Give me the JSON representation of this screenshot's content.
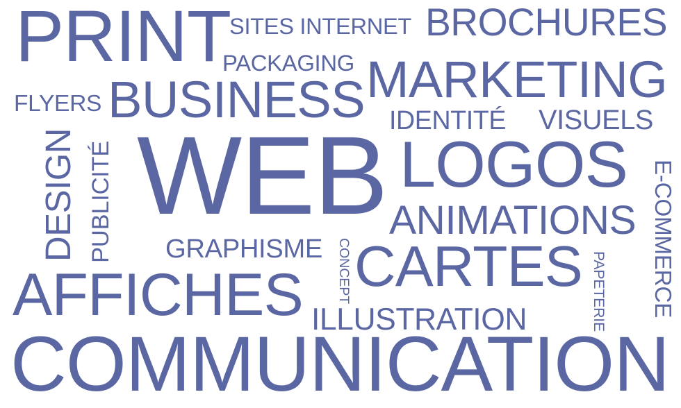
{
  "color": "#5b67a3",
  "background": "#ffffff",
  "words": {
    "print": "PRINT",
    "sites_internet": "SITES INTERNET",
    "brochures": "BROCHURES",
    "packaging": "PACKAGING",
    "marketing": "MARKETING",
    "flyers": "FLYERS",
    "business": "BUSINESS",
    "identite": "IDENTITÉ",
    "visuels": "VISUELS",
    "design": "DESIGN",
    "publicite": "PUBLICITÉ",
    "web": "WEB",
    "logos": "LOGOS",
    "ecommerce": "E-COMMERCE",
    "animations": "ANIMATIONS",
    "graphisme": "GRAPHISME",
    "concept": "CONCEPT",
    "cartes": "CARTES",
    "papeterie": "PAPETERIE",
    "affiches": "AFFICHES",
    "illustration": "ILLUSTRATION",
    "communication": "COMMUNICATION"
  }
}
